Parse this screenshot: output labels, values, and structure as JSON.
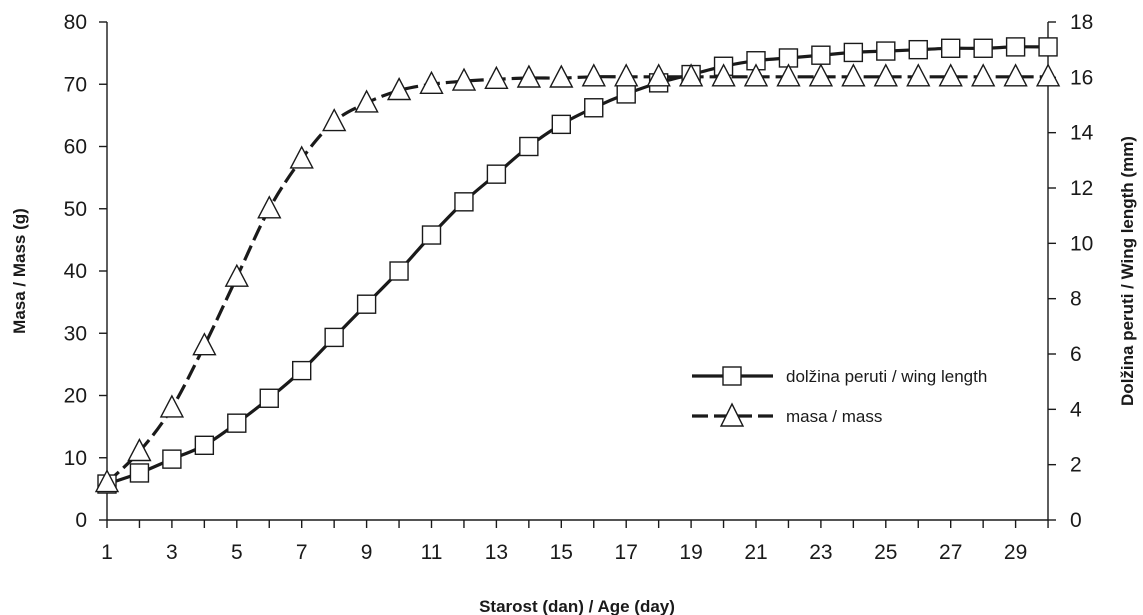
{
  "chart_data": {
    "type": "line",
    "xlabel": "Starost (dan) / Age (day)",
    "ylabel_left": "Masa / Mass (g)",
    "ylabel_right": "Dolžina peruti / Wing length (mm)",
    "x_ticks": [
      1,
      3,
      5,
      7,
      9,
      11,
      13,
      15,
      17,
      19,
      21,
      23,
      25,
      27,
      29
    ],
    "x": [
      1,
      2,
      3,
      4,
      5,
      6,
      7,
      8,
      9,
      10,
      11,
      12,
      13,
      14,
      15,
      16,
      17,
      18,
      19,
      20,
      21,
      22,
      23,
      24,
      25,
      26,
      27,
      28,
      29,
      30
    ],
    "xlim": [
      1,
      30
    ],
    "ylim_left": [
      0,
      80
    ],
    "yticks_left": [
      0,
      10,
      20,
      30,
      40,
      50,
      60,
      70,
      80
    ],
    "ylim_right": [
      0,
      18
    ],
    "yticks_right": [
      0,
      2,
      4,
      6,
      8,
      10,
      12,
      14,
      16,
      18
    ],
    "legend_position": "center-right",
    "grid": false,
    "series": [
      {
        "name": "dolžina peruti / wing length",
        "axis": "right",
        "marker": "square",
        "line_style": "solid",
        "values": [
          1.3,
          1.7,
          2.2,
          2.7,
          3.5,
          4.4,
          5.4,
          6.6,
          7.8,
          9.0,
          10.3,
          11.5,
          12.5,
          13.5,
          14.3,
          14.9,
          15.4,
          15.8,
          16.1,
          16.4,
          16.6,
          16.7,
          16.8,
          16.9,
          16.95,
          17.0,
          17.05,
          17.05,
          17.1,
          17.1
        ]
      },
      {
        "name": "masa / mass",
        "axis": "left",
        "marker": "triangle",
        "line_style": "dashed",
        "values": [
          6,
          11,
          18,
          28,
          39,
          50,
          58,
          64,
          67,
          69,
          70,
          70.5,
          70.8,
          71,
          71,
          71.2,
          71.2,
          71.2,
          71.2,
          71.2,
          71.2,
          71.2,
          71.2,
          71.2,
          71.2,
          71.2,
          71.2,
          71.2,
          71.2,
          71.2
        ]
      }
    ]
  }
}
